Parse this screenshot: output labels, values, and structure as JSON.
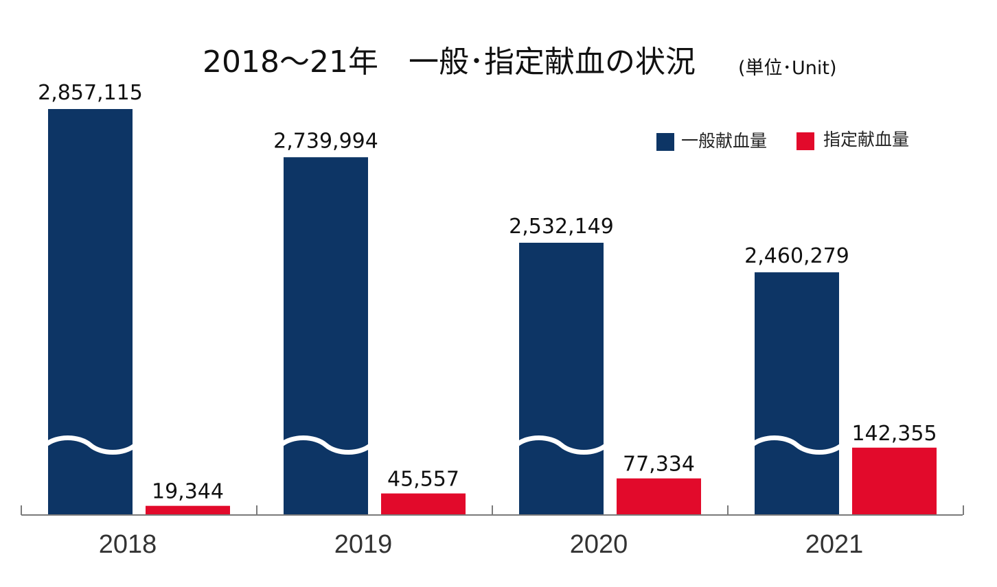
{
  "chart_data": {
    "type": "bar",
    "title": "2018～21年　一般･指定献血の状況",
    "unit_note": "(単位･Unit)",
    "categories": [
      "2018",
      "2019",
      "2020",
      "2021"
    ],
    "series": [
      {
        "name": "一般献血量",
        "color": "#0d3565",
        "values": [
          2857115,
          2739994,
          2532149,
          2460279
        ],
        "labels": [
          "2,857,115",
          "2,739,994",
          "2,532,149",
          "2,460,279"
        ],
        "axis_break": true
      },
      {
        "name": "指定献血量",
        "color": "#e20a2b",
        "values": [
          19344,
          45557,
          77334,
          142355
        ],
        "labels": [
          "19,344",
          "45,557",
          "77,334",
          "142,355"
        ]
      }
    ],
    "legend_position": "top-right",
    "grid": false
  }
}
